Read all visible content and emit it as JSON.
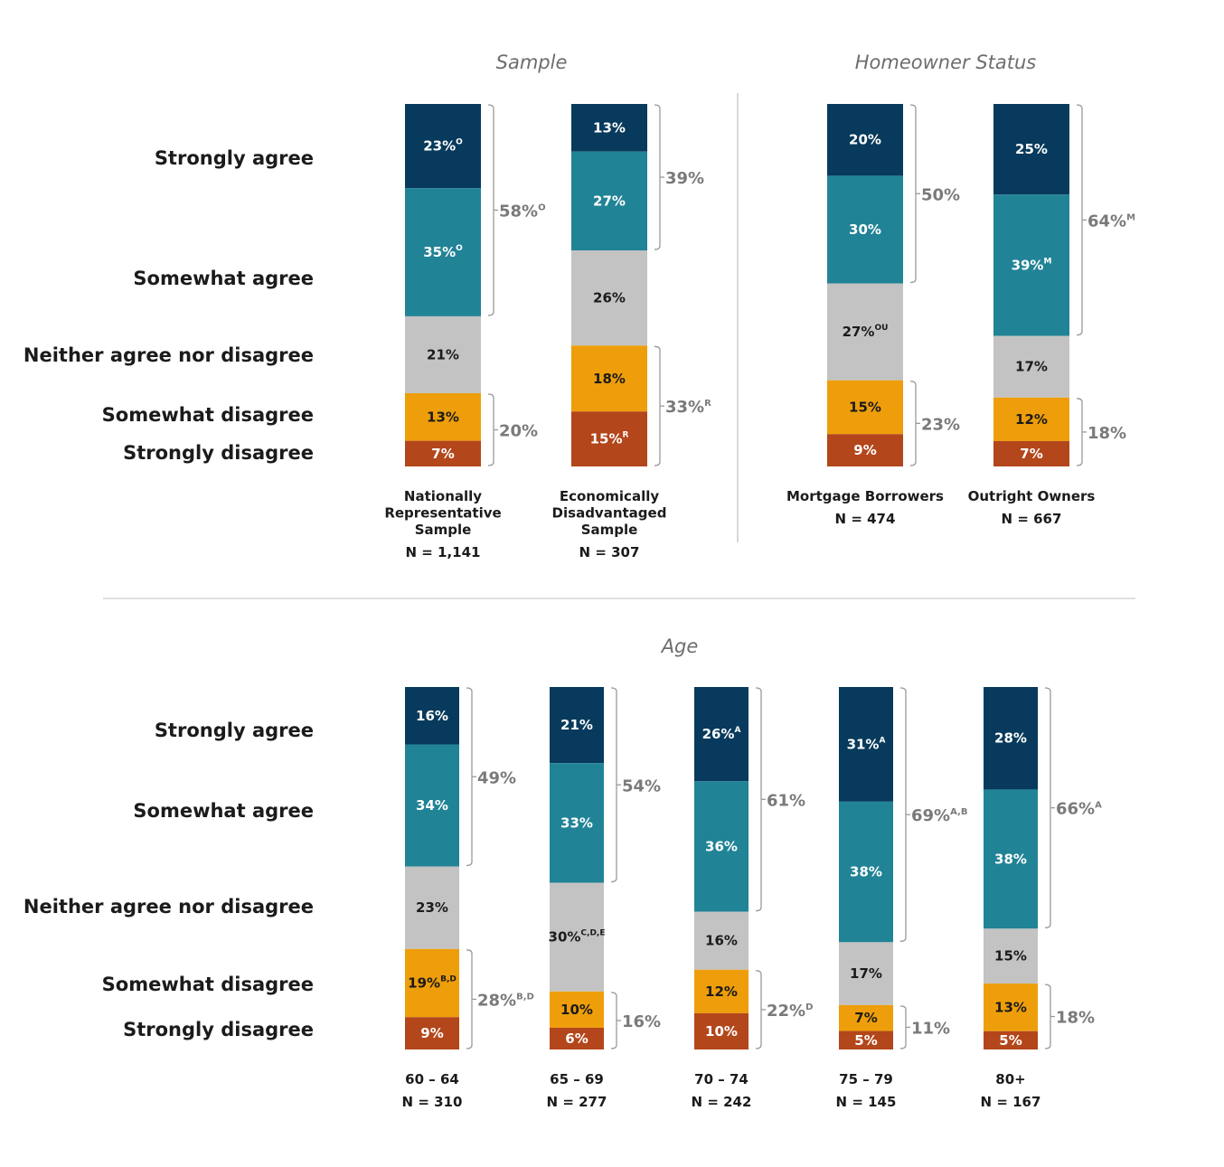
{
  "colors": {
    "Strongly agree": "#073a5c",
    "Somewhat agree": "#218396",
    "Neither agree nor disagree": "#c3c3c3",
    "Somewhat disagree": "#ee9e0a",
    "Strongly disagree": "#b3461b"
  },
  "row_labels": [
    "Strongly agree",
    "Somewhat agree",
    "Neither agree nor disagree",
    "Somewhat disagree",
    "Strongly disagree"
  ],
  "chart_data": [
    {
      "type": "bar",
      "stacked": true,
      "panel": "top",
      "groups": [
        {
          "title": "Sample",
          "bars": [
            {
              "label": [
                "Nationally",
                "Representative",
                "Sample"
              ],
              "n": "N = 1,141",
              "values": [
                23,
                35,
                21,
                13,
                7
              ],
              "sup": [
                "O",
                "O",
                "",
                "",
                ""
              ],
              "agree_total": {
                "value": 58,
                "text": "58%",
                "sup": "O"
              },
              "disagree_total": {
                "value": 20,
                "text": "20%",
                "sup": ""
              }
            },
            {
              "label": [
                "Economically",
                "Disadvantaged",
                "Sample"
              ],
              "n": "N = 307",
              "values": [
                13,
                27,
                26,
                18,
                15
              ],
              "sup": [
                "",
                "",
                "",
                "",
                "R"
              ],
              "agree_total": {
                "value": 39,
                "text": "39%",
                "sup": ""
              },
              "disagree_total": {
                "value": 33,
                "text": "33%",
                "sup": "R"
              }
            }
          ]
        },
        {
          "title": "Homeowner Status",
          "bars": [
            {
              "label": [
                "Mortgage Borrowers"
              ],
              "n": "N = 474",
              "values": [
                20,
                30,
                27,
                15,
                9
              ],
              "sup": [
                "",
                "",
                "OU",
                "",
                ""
              ],
              "agree_total": {
                "value": 50,
                "text": "50%",
                "sup": ""
              },
              "disagree_total": {
                "value": 23,
                "text": "23%",
                "sup": ""
              }
            },
            {
              "label": [
                "Outright Owners"
              ],
              "n": "N = 667",
              "values": [
                25,
                39,
                17,
                12,
                7
              ],
              "sup": [
                "",
                "M",
                "",
                "",
                ""
              ],
              "agree_total": {
                "value": 64,
                "text": "64%",
                "sup": "M"
              },
              "disagree_total": {
                "value": 18,
                "text": "18%",
                "sup": ""
              }
            }
          ]
        }
      ]
    },
    {
      "type": "bar",
      "stacked": true,
      "panel": "bottom",
      "groups": [
        {
          "title": "Age",
          "bars": [
            {
              "label": [
                "60 – 64"
              ],
              "n": "N = 310",
              "values": [
                16,
                34,
                23,
                19,
                9
              ],
              "sup": [
                "",
                "",
                "",
                "B,D",
                ""
              ],
              "agree_total": {
                "value": 49,
                "text": "49%",
                "sup": ""
              },
              "disagree_total": {
                "value": 28,
                "text": "28%",
                "sup": "B,D"
              }
            },
            {
              "label": [
                "65 – 69"
              ],
              "n": "N = 277",
              "values": [
                21,
                33,
                30,
                10,
                6
              ],
              "sup": [
                "",
                "",
                "C,D,E",
                "",
                ""
              ],
              "agree_total": {
                "value": 54,
                "text": "54%",
                "sup": ""
              },
              "disagree_total": {
                "value": 16,
                "text": "16%",
                "sup": ""
              }
            },
            {
              "label": [
                "70 – 74"
              ],
              "n": "N = 242",
              "values": [
                26,
                36,
                16,
                12,
                10
              ],
              "sup": [
                "A",
                "",
                "",
                "",
                ""
              ],
              "agree_total": {
                "value": 61,
                "text": "61%",
                "sup": ""
              },
              "disagree_total": {
                "value": 22,
                "text": "22%",
                "sup": "D"
              }
            },
            {
              "label": [
                "75 – 79"
              ],
              "n": "N = 145",
              "values": [
                31,
                38,
                17,
                7,
                5
              ],
              "sup": [
                "A",
                "",
                "",
                "",
                ""
              ],
              "agree_total": {
                "value": 69,
                "text": "69%",
                "sup": "A,B"
              },
              "disagree_total": {
                "value": 11,
                "text": "11%",
                "sup": ""
              }
            },
            {
              "label": [
                "80+"
              ],
              "n": "N = 167",
              "values": [
                28,
                38,
                15,
                13,
                5
              ],
              "sup": [
                "",
                "",
                "",
                "",
                ""
              ],
              "agree_total": {
                "value": 66,
                "text": "66%",
                "sup": "A"
              },
              "disagree_total": {
                "value": 18,
                "text": "18%",
                "sup": ""
              }
            }
          ]
        }
      ]
    }
  ]
}
